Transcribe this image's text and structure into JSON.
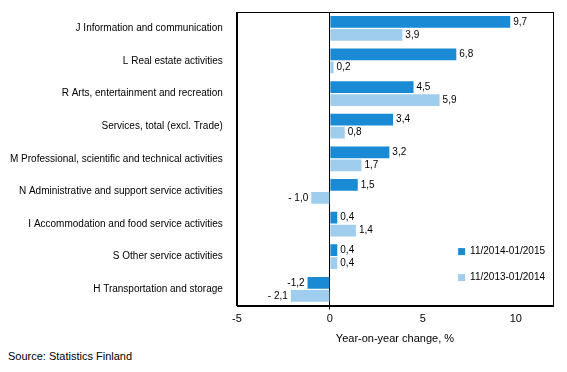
{
  "chart_data": {
    "type": "bar",
    "orientation": "horizontal",
    "categories": [
      "J Information and communication",
      "L Real estate activities",
      "R Arts, entertainment and recreation",
      "Services, total (excl. Trade)",
      "M Professional, scientific and technical activities",
      "N Administrative and support service activities",
      "I Accommodation and food service activities",
      "S Other service activities",
      "H Transportation and storage"
    ],
    "series": [
      {
        "name": "11/2014-01/2015",
        "color": "#1a8ad4",
        "values": [
          9.7,
          6.8,
          4.5,
          3.4,
          3.2,
          1.5,
          0.4,
          0.4,
          -1.2
        ],
        "value_labels": [
          "9,7",
          "6,8",
          "4,5",
          "3,4",
          "3,2",
          "1,5",
          "0,4",
          "0,4",
          "-1,2"
        ]
      },
      {
        "name": "11/2013-01/2014",
        "color": "#9fcdee",
        "values": [
          3.9,
          0.2,
          5.9,
          0.8,
          1.7,
          -1.0,
          1.4,
          0.4,
          -2.1
        ],
        "value_labels": [
          "3,9",
          "0,2",
          "5,9",
          "0,8",
          "1,7",
          "- 1,0",
          "1,4",
          "0,4",
          "- 2,1"
        ]
      }
    ],
    "x_label": "Year-on-year change, %",
    "xlim": [
      -5,
      12
    ],
    "xticks": [
      -5,
      0,
      5,
      10
    ],
    "grid": false,
    "legend": "lower right",
    "data_labels": true,
    "source": "Source: Statistics Finland"
  }
}
